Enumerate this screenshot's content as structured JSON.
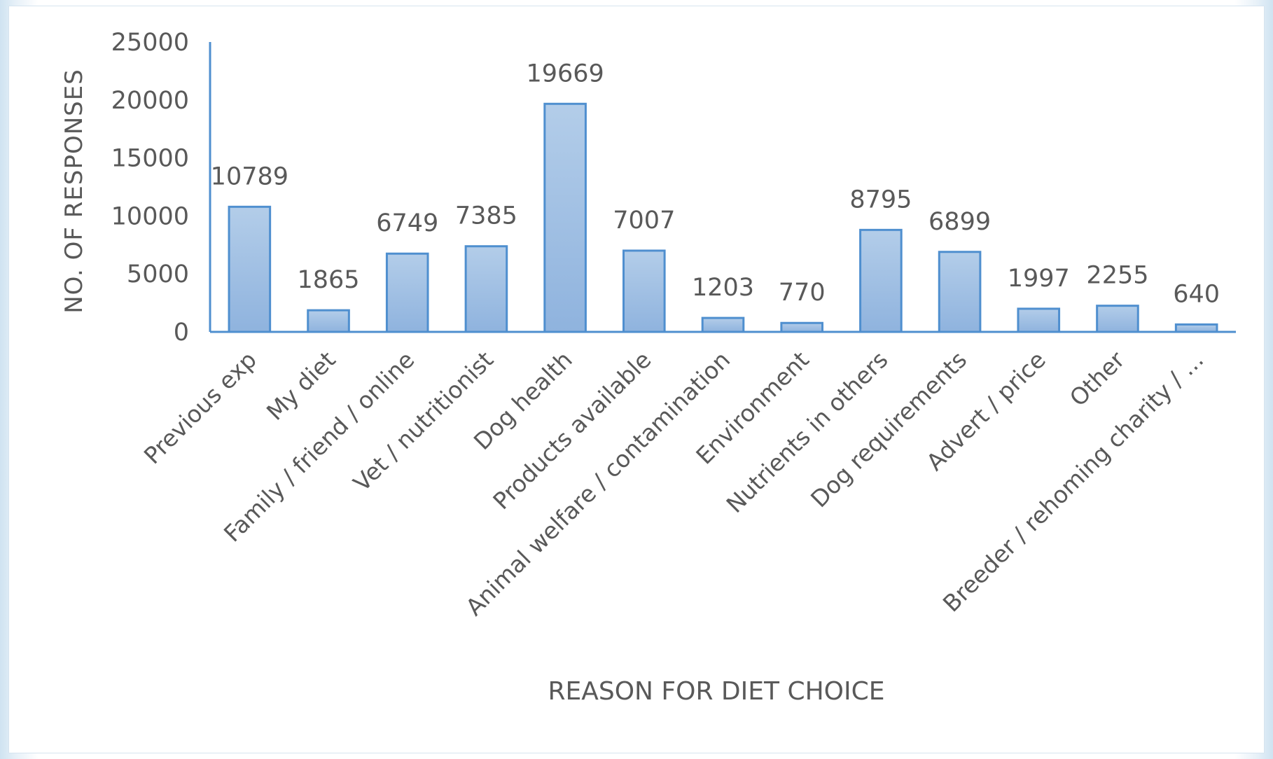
{
  "chart_data": {
    "type": "bar",
    "title": "",
    "xlabel": "REASON FOR DIET CHOICE",
    "ylabel": "NO. OF RESPONSES",
    "ylim": [
      0,
      25000
    ],
    "yticks": [
      0,
      5000,
      10000,
      15000,
      20000,
      25000
    ],
    "grid": false,
    "legend": "none",
    "categories": [
      "Previous exp",
      "My diet",
      "Family / friend / online",
      "Vet / nutritionist",
      "Dog health",
      "Products available",
      "Animal welfare / contamination",
      "Environment",
      "Nutrients in others",
      "Dog requirements",
      "Advert / price",
      "Other",
      "Breeder / rehoming charity / ..."
    ],
    "values": [
      10789,
      1865,
      6749,
      7385,
      19669,
      7007,
      1203,
      770,
      8795,
      6899,
      1997,
      2255,
      640
    ],
    "data_labels": [
      "10789",
      "1865",
      "6749",
      "7385",
      "19669",
      "7007",
      "1203",
      "770",
      "8795",
      "6899",
      "1997",
      "2255",
      "640"
    ],
    "colors": {
      "bar_fill_top": "#b3cde9",
      "bar_fill_bottom": "#8fb3de",
      "bar_stroke": "#4f8fcf",
      "axis": "#4f8fcf",
      "text": "#595959"
    }
  }
}
